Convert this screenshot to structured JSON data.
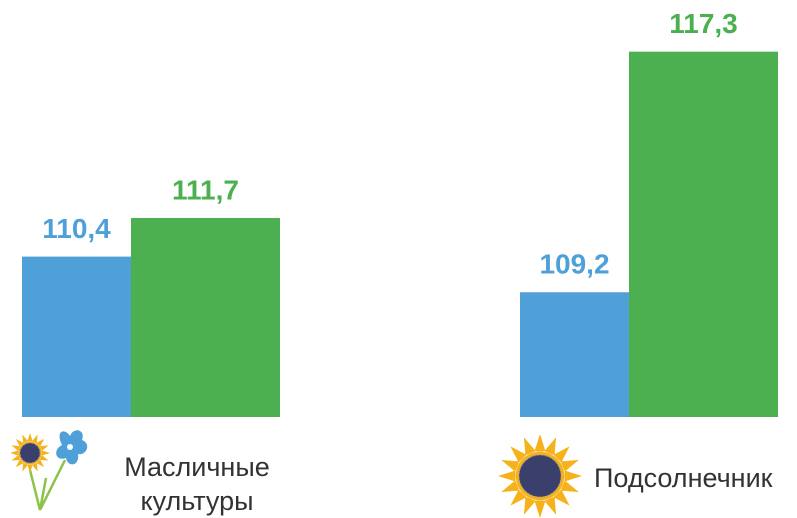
{
  "chart_data": {
    "type": "bar",
    "categories": [
      "Масличные культуры",
      "Подсолнечник"
    ],
    "series": [
      {
        "color": "#4f9fd8",
        "values": [
          110.4,
          109.2
        ],
        "value_labels": [
          "110,4",
          "109,2"
        ]
      },
      {
        "color": "#4caf50",
        "values": [
          111.7,
          117.3
        ],
        "value_labels": [
          "111,7",
          "117,3"
        ]
      }
    ],
    "ylim": [
      105,
      118.5
    ]
  }
}
